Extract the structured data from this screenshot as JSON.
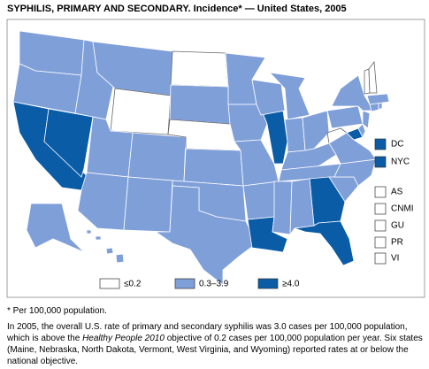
{
  "title": "SYPHILIS, PRIMARY AND SECONDARY. Incidence* — United States, 2005",
  "map": {
    "classes": [
      {
        "label": "≤0.2",
        "color": "#ffffff"
      },
      {
        "label": "0.3–3.9",
        "color": "#7f9fd9"
      },
      {
        "label": "≥4.0",
        "color": "#0b5ca6"
      }
    ],
    "regions": [
      1,
      1,
      2,
      2,
      1,
      1,
      0,
      1,
      1,
      1,
      1,
      0,
      1,
      0,
      1,
      1,
      1,
      1,
      1,
      1,
      2,
      1,
      2,
      1,
      1,
      1,
      1,
      1,
      1,
      1,
      2,
      2,
      1,
      1,
      1,
      0,
      1,
      1,
      2,
      1,
      1,
      1,
      1,
      1,
      0,
      1,
      0,
      1,
      1
    ],
    "territories": [
      {
        "label": "DC",
        "class": 2
      },
      {
        "label": "NYC",
        "class": 2
      },
      {
        "label": "AS",
        "class": 0
      },
      {
        "label": "CNMI",
        "class": 0
      },
      {
        "label": "GU",
        "class": 0
      },
      {
        "label": "PR",
        "class": 0
      },
      {
        "label": "VI",
        "class": 0
      }
    ]
  },
  "footnote": "* Per 100,000 population.",
  "description": [
    "In 2005, the overall U.S. rate of primary and secondary syphilis was 3.0 cases per 100,000 population, which is above the ",
    "Healthy People 2010",
    " objective of 0.2 cases per 100,000 population per year. Six states (Maine, Nebraska, North Dakota, Vermont, West Virginia, and Wyoming) reported rates at or below the national objective."
  ]
}
